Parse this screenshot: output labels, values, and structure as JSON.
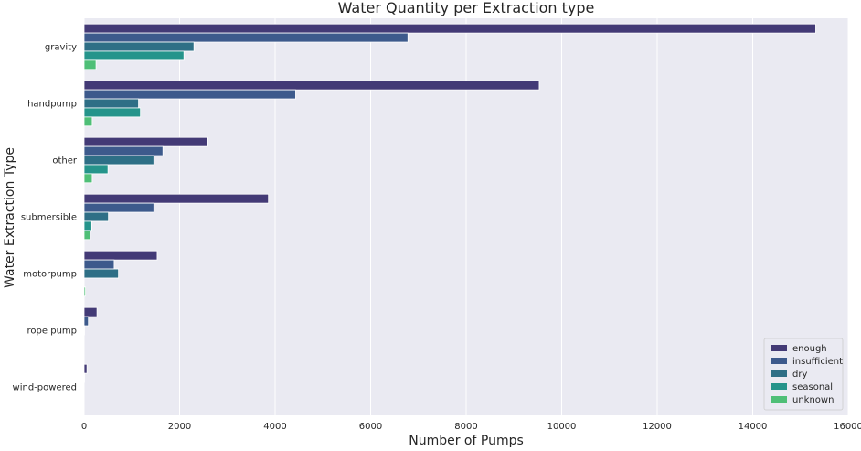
{
  "chart_data": {
    "type": "bar",
    "orientation": "horizontal",
    "title": "Water Quantity per Extraction type",
    "xlabel": "Number of Pumps",
    "ylabel": "Water Extraction Type",
    "xlim": [
      0,
      16000
    ],
    "xticks": [
      "0",
      "2000",
      "4000",
      "6000",
      "8000",
      "10000",
      "12000",
      "14000",
      "16000"
    ],
    "categories": [
      "gravity",
      "handpump",
      "other",
      "submersible",
      "motorpump",
      "rope pump",
      "wind-powered"
    ],
    "series": [
      {
        "name": "enough",
        "color": "#433a76",
        "values": [
          15320,
          9530,
          2590,
          3860,
          1530,
          270,
          60
        ]
      },
      {
        "name": "insufficient",
        "color": "#3d5a8c",
        "values": [
          6780,
          4430,
          1650,
          1460,
          630,
          90,
          10
        ]
      },
      {
        "name": "dry",
        "color": "#2e6f86",
        "values": [
          2300,
          1140,
          1460,
          510,
          720,
          10,
          0
        ]
      },
      {
        "name": "seasonal",
        "color": "#25948b",
        "values": [
          2090,
          1180,
          500,
          160,
          0,
          0,
          0
        ]
      },
      {
        "name": "unknown",
        "color": "#4fbf77",
        "values": [
          250,
          170,
          170,
          130,
          30,
          0,
          0
        ]
      }
    ],
    "grid": true,
    "legend_position": "bottom-right",
    "background": "#eaeaf2"
  }
}
